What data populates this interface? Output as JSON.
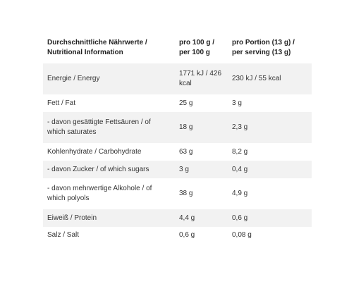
{
  "table": {
    "headers": [
      "Durchschnittliche Nährwerte / Nutritional Information",
      "pro 100 g / per 100 g",
      "pro Portion (13 g) / per serving (13 g)"
    ],
    "rows": [
      [
        "Energie / Energy",
        "1771 kJ / 426 kcal",
        "230 kJ / 55 kcal"
      ],
      [
        "Fett / Fat",
        "25 g",
        "3 g"
      ],
      [
        "- davon gesättigte Fettsäuren / of which saturates",
        "18 g",
        "2,3 g"
      ],
      [
        "Kohlenhydrate / Carbohydrate",
        "63 g",
        "8,2 g"
      ],
      [
        "- davon Zucker / of which sugars",
        "3 g",
        "0,4 g"
      ],
      [
        "- davon mehrwertige Alkohole / of which polyols",
        "38 g",
        "4,9 g"
      ],
      [
        "Eiweiß / Protein",
        "4,4 g",
        "0,6 g"
      ],
      [
        "Salz / Salt",
        "0,6 g",
        "0,08 g"
      ]
    ]
  }
}
